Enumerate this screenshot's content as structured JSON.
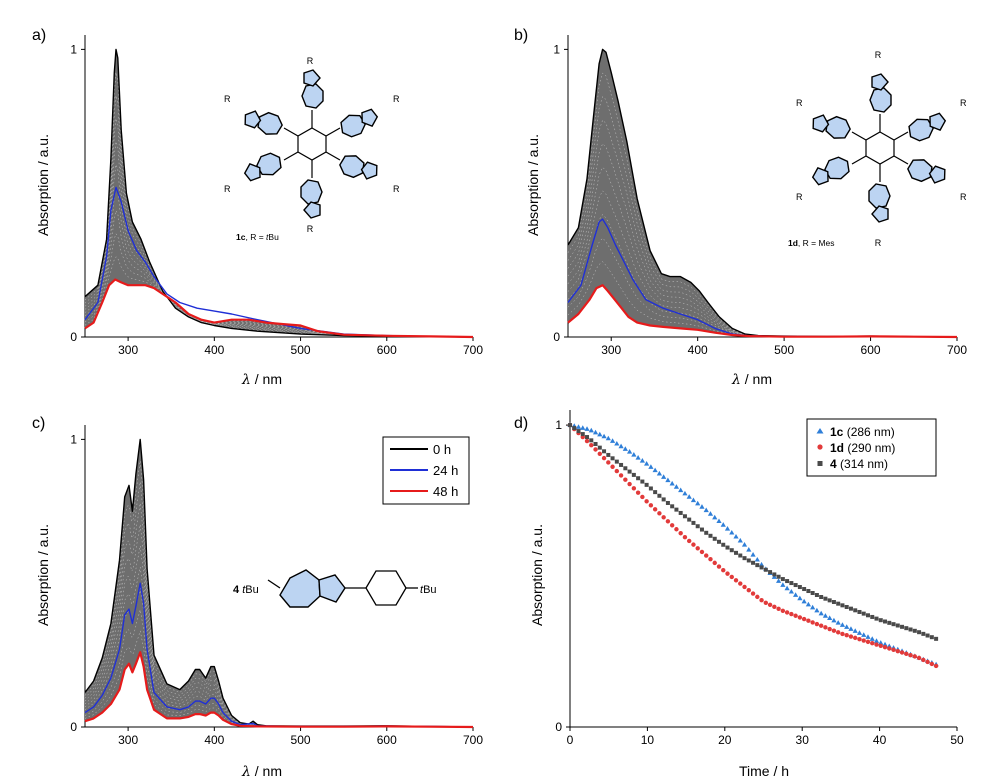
{
  "colors": {
    "black": "#000000",
    "blue": "#1f2fd6",
    "red": "#e61b1b",
    "envelope": "#6e6e6e",
    "azulene_fill": "#bcd4f2",
    "series_1c": "#2f7fd8",
    "series_1d": "#e23a3a",
    "series_4": "#4a4a4a"
  },
  "chart_data": [
    {
      "panel_label": "a)",
      "type": "line",
      "ylabel": "Absorption / a.u.",
      "xlabel_symbol": "λ",
      "xlabel_unit": " / nm",
      "xlim": [
        250,
        700
      ],
      "ylim": [
        0,
        1.05
      ],
      "xticks": [
        300,
        400,
        500,
        600,
        700
      ],
      "yticks": [
        0,
        1
      ],
      "grid": false,
      "structure_caption": {
        "bold": "1c",
        "text": ", R = ",
        "italic": "t",
        "tail": "Bu"
      },
      "series": [
        {
          "role": "0 h",
          "color": "#000000",
          "x": [
            250,
            265,
            275,
            280,
            284,
            286,
            288,
            292,
            298,
            305,
            315,
            325,
            340,
            355,
            370,
            385,
            400,
            420,
            450,
            500,
            550,
            600,
            650,
            700
          ],
          "y": [
            0.14,
            0.18,
            0.34,
            0.62,
            0.92,
            1.0,
            0.97,
            0.72,
            0.5,
            0.4,
            0.34,
            0.26,
            0.16,
            0.1,
            0.07,
            0.05,
            0.04,
            0.03,
            0.02,
            0.01,
            0.005,
            0.003,
            0.002,
            0.0
          ]
        },
        {
          "role": "24 h",
          "color": "#1f2fd6",
          "x": [
            250,
            265,
            275,
            280,
            286,
            292,
            300,
            310,
            320,
            330,
            345,
            360,
            380,
            400,
            420,
            450,
            500,
            550,
            600,
            650,
            700
          ],
          "y": [
            0.06,
            0.12,
            0.28,
            0.44,
            0.52,
            0.47,
            0.37,
            0.3,
            0.26,
            0.21,
            0.15,
            0.12,
            0.1,
            0.09,
            0.08,
            0.06,
            0.03,
            0.01,
            0.005,
            0.002,
            0.0
          ]
        },
        {
          "role": "48 h",
          "color": "#e61b1b",
          "x": [
            250,
            260,
            270,
            278,
            285,
            292,
            300,
            310,
            320,
            330,
            340,
            355,
            370,
            385,
            400,
            420,
            440,
            460,
            480,
            500,
            520,
            550,
            600,
            650,
            700
          ],
          "y": [
            0.03,
            0.05,
            0.12,
            0.18,
            0.2,
            0.19,
            0.18,
            0.18,
            0.18,
            0.17,
            0.15,
            0.12,
            0.08,
            0.06,
            0.05,
            0.06,
            0.06,
            0.05,
            0.045,
            0.04,
            0.02,
            0.008,
            0.004,
            0.002,
            0.0
          ]
        }
      ]
    },
    {
      "panel_label": "b)",
      "type": "line",
      "ylabel": "Absorption / a.u.",
      "xlabel_symbol": "λ",
      "xlabel_unit": " / nm",
      "xlim": [
        250,
        700
      ],
      "ylim": [
        0,
        1.05
      ],
      "xticks": [
        300,
        400,
        500,
        600,
        700
      ],
      "yticks": [
        0,
        1
      ],
      "grid": false,
      "structure_caption": {
        "bold": "1d",
        "text": ", R = Mes",
        "italic": "",
        "tail": ""
      },
      "series": [
        {
          "role": "0 h",
          "color": "#000000",
          "x": [
            250,
            262,
            272,
            280,
            286,
            290,
            294,
            300,
            308,
            318,
            330,
            345,
            358,
            368,
            380,
            392,
            402,
            412,
            425,
            440,
            455,
            470,
            500,
            550,
            600,
            650,
            700
          ],
          "y": [
            0.32,
            0.38,
            0.55,
            0.78,
            0.95,
            1.0,
            0.99,
            0.92,
            0.82,
            0.68,
            0.48,
            0.3,
            0.22,
            0.21,
            0.21,
            0.19,
            0.16,
            0.12,
            0.07,
            0.03,
            0.01,
            0.005,
            0.003,
            0.002,
            0.003,
            0.001,
            0.0
          ]
        },
        {
          "role": "24 h",
          "color": "#1f2fd6",
          "x": [
            250,
            265,
            278,
            286,
            290,
            296,
            305,
            315,
            325,
            340,
            360,
            380,
            400,
            420,
            440,
            460,
            500,
            550,
            600,
            650,
            700
          ],
          "y": [
            0.12,
            0.18,
            0.32,
            0.4,
            0.41,
            0.38,
            0.32,
            0.26,
            0.2,
            0.13,
            0.1,
            0.08,
            0.06,
            0.03,
            0.01,
            0.004,
            0.002,
            0.001,
            0.002,
            0.001,
            0.0
          ]
        },
        {
          "role": "48 h",
          "color": "#e61b1b",
          "x": [
            250,
            262,
            275,
            283,
            290,
            296,
            304,
            312,
            320,
            330,
            345,
            360,
            380,
            400,
            420,
            440,
            460,
            500,
            550,
            600,
            650,
            700
          ],
          "y": [
            0.05,
            0.08,
            0.13,
            0.17,
            0.18,
            0.16,
            0.13,
            0.1,
            0.07,
            0.05,
            0.04,
            0.035,
            0.03,
            0.025,
            0.015,
            0.007,
            0.003,
            0.001,
            0.001,
            0.002,
            0.001,
            0.0
          ]
        }
      ]
    },
    {
      "panel_label": "c)",
      "type": "line",
      "ylabel": "Absorption / a.u.",
      "xlabel_symbol": "λ",
      "xlabel_unit": " / nm",
      "xlim": [
        250,
        700
      ],
      "ylim": [
        0,
        1.05
      ],
      "xticks": [
        300,
        400,
        500,
        600,
        700
      ],
      "yticks": [
        0,
        1
      ],
      "grid": false,
      "legend": {
        "placement": "top-right",
        "entries": [
          "0 h",
          "24 h",
          "48 h"
        ]
      },
      "structure_caption": {
        "bold": "4",
        "left_italic": "t",
        "left_tail": "Bu",
        "right_italic": "t",
        "right_tail": "Bu"
      },
      "series": [
        {
          "role": "0 h",
          "color": "#000000",
          "x": [
            250,
            260,
            270,
            280,
            290,
            296,
            301,
            305,
            309,
            314,
            318,
            322,
            330,
            345,
            360,
            370,
            378,
            383,
            390,
            396,
            400,
            405,
            410,
            420,
            430,
            440,
            445,
            450,
            460,
            500,
            550,
            600,
            650,
            700
          ],
          "y": [
            0.12,
            0.16,
            0.24,
            0.36,
            0.58,
            0.8,
            0.84,
            0.75,
            0.88,
            1.0,
            0.86,
            0.55,
            0.25,
            0.15,
            0.13,
            0.16,
            0.2,
            0.2,
            0.17,
            0.21,
            0.21,
            0.16,
            0.1,
            0.04,
            0.015,
            0.01,
            0.02,
            0.008,
            0.004,
            0.003,
            0.003,
            0.004,
            0.002,
            0.0
          ]
        },
        {
          "role": "24 h",
          "color": "#1f2fd6",
          "x": [
            250,
            260,
            270,
            280,
            290,
            296,
            301,
            305,
            309,
            314,
            318,
            322,
            330,
            345,
            360,
            370,
            378,
            383,
            390,
            396,
            400,
            405,
            410,
            420,
            430,
            445,
            450,
            500,
            550,
            600,
            650,
            700
          ],
          "y": [
            0.05,
            0.07,
            0.11,
            0.17,
            0.27,
            0.39,
            0.41,
            0.36,
            0.42,
            0.5,
            0.43,
            0.27,
            0.12,
            0.07,
            0.06,
            0.07,
            0.09,
            0.09,
            0.08,
            0.1,
            0.1,
            0.08,
            0.05,
            0.02,
            0.008,
            0.012,
            0.004,
            0.002,
            0.002,
            0.003,
            0.002,
            0.0
          ]
        },
        {
          "role": "48 h",
          "color": "#e61b1b",
          "x": [
            250,
            260,
            270,
            280,
            290,
            296,
            301,
            305,
            309,
            314,
            318,
            322,
            330,
            345,
            360,
            370,
            378,
            383,
            390,
            396,
            400,
            405,
            410,
            420,
            430,
            450,
            500,
            550,
            600,
            650,
            700
          ],
          "y": [
            0.02,
            0.03,
            0.05,
            0.08,
            0.13,
            0.2,
            0.22,
            0.19,
            0.22,
            0.26,
            0.21,
            0.13,
            0.06,
            0.03,
            0.03,
            0.035,
            0.045,
            0.045,
            0.04,
            0.05,
            0.05,
            0.04,
            0.025,
            0.01,
            0.004,
            0.002,
            0.001,
            0.001,
            0.002,
            0.001,
            0.0
          ]
        }
      ]
    },
    {
      "panel_label": "d)",
      "type": "scatter",
      "ylabel": "Absorption / a.u.",
      "xlabel": "Time / h",
      "xlim": [
        0,
        50
      ],
      "ylim": [
        0,
        1.05
      ],
      "xticks": [
        0,
        10,
        20,
        30,
        40,
        50
      ],
      "yticks": [
        0,
        1
      ],
      "grid": false,
      "legend": {
        "placement": "top-right"
      },
      "series": [
        {
          "name_bold": "1c",
          "name_rest": " (286 nm)",
          "marker": "triangle",
          "color": "#2f7fd8",
          "x": [
            0,
            2.5,
            5,
            7.5,
            10,
            12.5,
            15,
            17.5,
            20,
            22.5,
            25,
            27.5,
            30,
            32.5,
            35,
            37.5,
            40,
            42.5,
            45,
            47.5
          ],
          "y": [
            1.0,
            0.985,
            0.955,
            0.915,
            0.87,
            0.82,
            0.77,
            0.72,
            0.665,
            0.605,
            0.53,
            0.47,
            0.42,
            0.375,
            0.34,
            0.31,
            0.28,
            0.255,
            0.23,
            0.205
          ]
        },
        {
          "name_bold": "1d",
          "name_rest": " (290 nm)",
          "marker": "circle",
          "color": "#e23a3a",
          "x": [
            0,
            2.5,
            5,
            7.5,
            10,
            12.5,
            15,
            17.5,
            20,
            22.5,
            25,
            27.5,
            30,
            32.5,
            35,
            37.5,
            40,
            42.5,
            45,
            47.5
          ],
          "y": [
            1.0,
            0.94,
            0.875,
            0.81,
            0.745,
            0.685,
            0.625,
            0.57,
            0.515,
            0.465,
            0.415,
            0.385,
            0.36,
            0.335,
            0.31,
            0.29,
            0.27,
            0.25,
            0.23,
            0.2
          ]
        },
        {
          "name_bold": "4",
          "name_rest": " (314 nm)",
          "marker": "square",
          "color": "#4a4a4a",
          "x": [
            0,
            2.5,
            5,
            7.5,
            10,
            12.5,
            15,
            17.5,
            20,
            22.5,
            25,
            27.5,
            30,
            32.5,
            35,
            37.5,
            40,
            42.5,
            45,
            47.5
          ],
          "y": [
            1.0,
            0.955,
            0.9,
            0.85,
            0.8,
            0.745,
            0.695,
            0.645,
            0.6,
            0.56,
            0.525,
            0.49,
            0.46,
            0.43,
            0.405,
            0.38,
            0.355,
            0.335,
            0.315,
            0.29
          ]
        }
      ]
    }
  ]
}
